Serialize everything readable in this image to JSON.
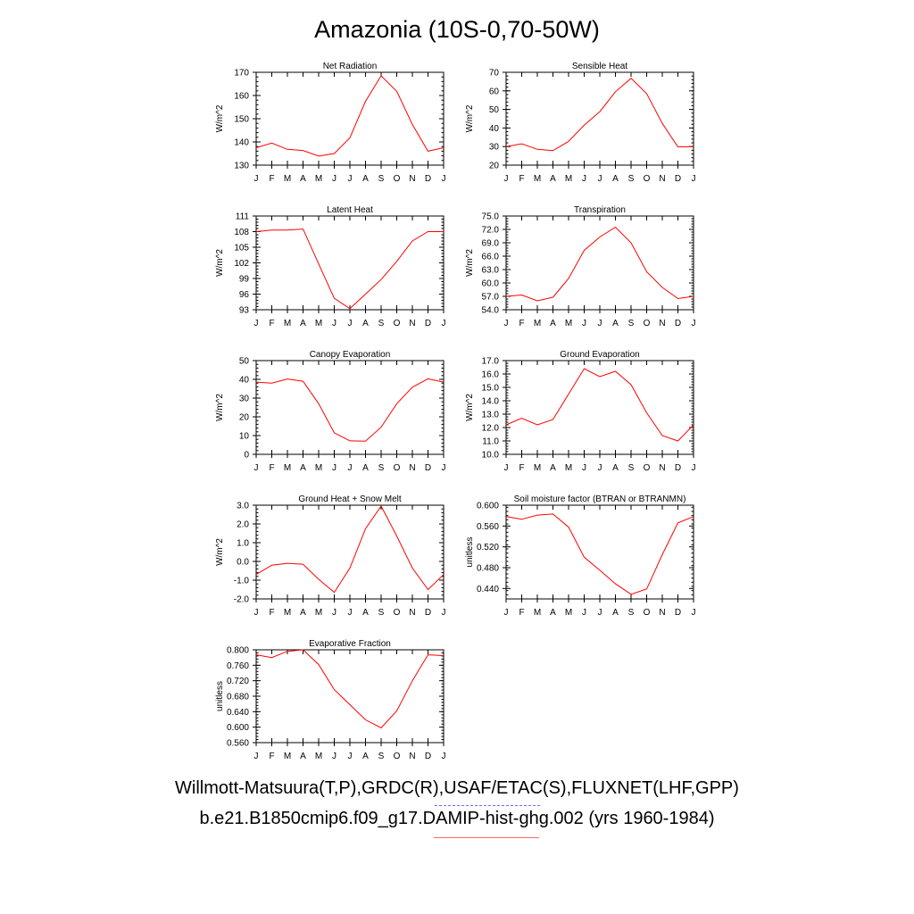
{
  "title": "Amazonia (10S-0,70-50W)",
  "footer": {
    "observations": "Willmott-Matsuura(T,P),GRDC(R),USAF/ETAC(S),FLUXNET(LHF,GPP)",
    "model_case": "b.e21.B1850cmip6.f09_g17.DAMIP-hist-ghg.002 (yrs 1960-1984)"
  },
  "colors": {
    "model_line": "#ff0000",
    "obs_legend": "#6b6bff",
    "axis": "#000000"
  },
  "chart_data": [
    {
      "type": "line",
      "title": "Net Radiation",
      "ylabel": "W/m^2",
      "categories": [
        "J",
        "F",
        "M",
        "A",
        "M",
        "J",
        "J",
        "A",
        "S",
        "O",
        "N",
        "D",
        "J"
      ],
      "ylim": [
        130,
        170
      ],
      "yticks": [
        "130",
        "140",
        "150",
        "160",
        "170"
      ],
      "values": [
        137.5,
        139.5,
        136.8,
        136.3,
        133.9,
        135.0,
        141.8,
        157.5,
        168.5,
        161.8,
        147.5,
        136.0,
        137.5
      ]
    },
    {
      "type": "line",
      "title": "Sensible Heat",
      "ylabel": "W/m^2",
      "categories": [
        "J",
        "F",
        "M",
        "A",
        "M",
        "J",
        "J",
        "A",
        "S",
        "O",
        "N",
        "D",
        "J"
      ],
      "ylim": [
        20,
        70
      ],
      "yticks": [
        "20",
        "30",
        "40",
        "50",
        "60",
        "70"
      ],
      "values": [
        30.0,
        31.5,
        28.5,
        27.8,
        32.8,
        41.5,
        48.8,
        59.5,
        66.8,
        58.5,
        42.5,
        29.8,
        30.0
      ]
    },
    {
      "type": "line",
      "title": "Latent Heat",
      "ylabel": "W/m^2",
      "categories": [
        "J",
        "F",
        "M",
        "A",
        "M",
        "J",
        "J",
        "A",
        "S",
        "O",
        "N",
        "D",
        "J"
      ],
      "ylim": [
        93,
        111
      ],
      "yticks": [
        "93",
        "96",
        "99",
        "102",
        "105",
        "108",
        "111"
      ],
      "values": [
        108.0,
        108.3,
        108.3,
        108.5,
        101.8,
        95.2,
        93.2,
        96.0,
        98.8,
        102.3,
        106.2,
        108.0,
        108.0
      ]
    },
    {
      "type": "line",
      "title": "Transpiration",
      "ylabel": "W/m^2",
      "categories": [
        "J",
        "F",
        "M",
        "A",
        "M",
        "J",
        "J",
        "A",
        "S",
        "O",
        "N",
        "D",
        "J"
      ],
      "ylim": [
        54,
        75
      ],
      "yticks": [
        "54.0",
        "57.0",
        "60.0",
        "63.0",
        "66.0",
        "69.0",
        "72.0",
        "75.0"
      ],
      "values": [
        57.0,
        57.3,
        56.0,
        56.8,
        61.0,
        67.3,
        70.3,
        72.5,
        69.0,
        62.5,
        59.0,
        56.5,
        57.0
      ]
    },
    {
      "type": "line",
      "title": "Canopy Evaporation",
      "ylabel": "W/m^2",
      "categories": [
        "J",
        "F",
        "M",
        "A",
        "M",
        "J",
        "J",
        "A",
        "S",
        "O",
        "N",
        "D",
        "J"
      ],
      "ylim": [
        0,
        50
      ],
      "yticks": [
        "0",
        "10",
        "20",
        "30",
        "40",
        "50"
      ],
      "values": [
        38.5,
        38.0,
        40.2,
        39.0,
        27.0,
        11.5,
        7.2,
        7.0,
        14.5,
        27.0,
        35.8,
        40.3,
        38.5
      ]
    },
    {
      "type": "line",
      "title": "Ground Evaporation",
      "ylabel": "W/m^2",
      "categories": [
        "J",
        "F",
        "M",
        "A",
        "M",
        "J",
        "J",
        "A",
        "S",
        "O",
        "N",
        "D",
        "J"
      ],
      "ylim": [
        10,
        17
      ],
      "yticks": [
        "10.0",
        "11.0",
        "12.0",
        "13.0",
        "14.0",
        "15.0",
        "16.0",
        "17.0"
      ],
      "values": [
        12.2,
        12.7,
        12.2,
        12.6,
        14.5,
        16.4,
        15.8,
        16.2,
        15.2,
        13.1,
        11.4,
        11.0,
        12.2
      ]
    },
    {
      "type": "line",
      "title": "Ground Heat + Snow Melt",
      "ylabel": "W/m^2",
      "categories": [
        "J",
        "F",
        "M",
        "A",
        "M",
        "J",
        "J",
        "A",
        "S",
        "O",
        "N",
        "D",
        "J"
      ],
      "ylim": [
        -2,
        3
      ],
      "yticks": [
        "-2.0",
        "-1.0",
        "0.0",
        "1.0",
        "2.0",
        "3.0"
      ],
      "values": [
        -0.7,
        -0.2,
        -0.1,
        -0.15,
        -0.95,
        -1.65,
        -0.35,
        1.75,
        2.95,
        1.35,
        -0.35,
        -1.5,
        -0.7
      ]
    },
    {
      "type": "line",
      "title": "Soil moisture factor (BTRAN or BTRANMN)",
      "ylabel": "unitless",
      "categories": [
        "J",
        "F",
        "M",
        "A",
        "M",
        "J",
        "J",
        "A",
        "S",
        "O",
        "N",
        "D",
        "J"
      ],
      "ylim": [
        0.42,
        0.6
      ],
      "yticks": [
        "0.440",
        "0.480",
        "0.520",
        "0.560",
        "0.600"
      ],
      "values": [
        0.578,
        0.573,
        0.581,
        0.583,
        0.558,
        0.5,
        0.475,
        0.449,
        0.429,
        0.439,
        0.505,
        0.566,
        0.578
      ]
    },
    {
      "type": "line",
      "title": "Evaporative Fraction",
      "ylabel": "unitless",
      "categories": [
        "J",
        "F",
        "M",
        "A",
        "M",
        "J",
        "J",
        "A",
        "S",
        "O",
        "N",
        "D",
        "J"
      ],
      "ylim": [
        0.56,
        0.8
      ],
      "yticks": [
        "0.560",
        "0.600",
        "0.640",
        "0.680",
        "0.720",
        "0.760",
        "0.800"
      ],
      "values": [
        0.787,
        0.78,
        0.796,
        0.8,
        0.762,
        0.697,
        0.658,
        0.619,
        0.598,
        0.642,
        0.72,
        0.787,
        0.785
      ]
    }
  ]
}
